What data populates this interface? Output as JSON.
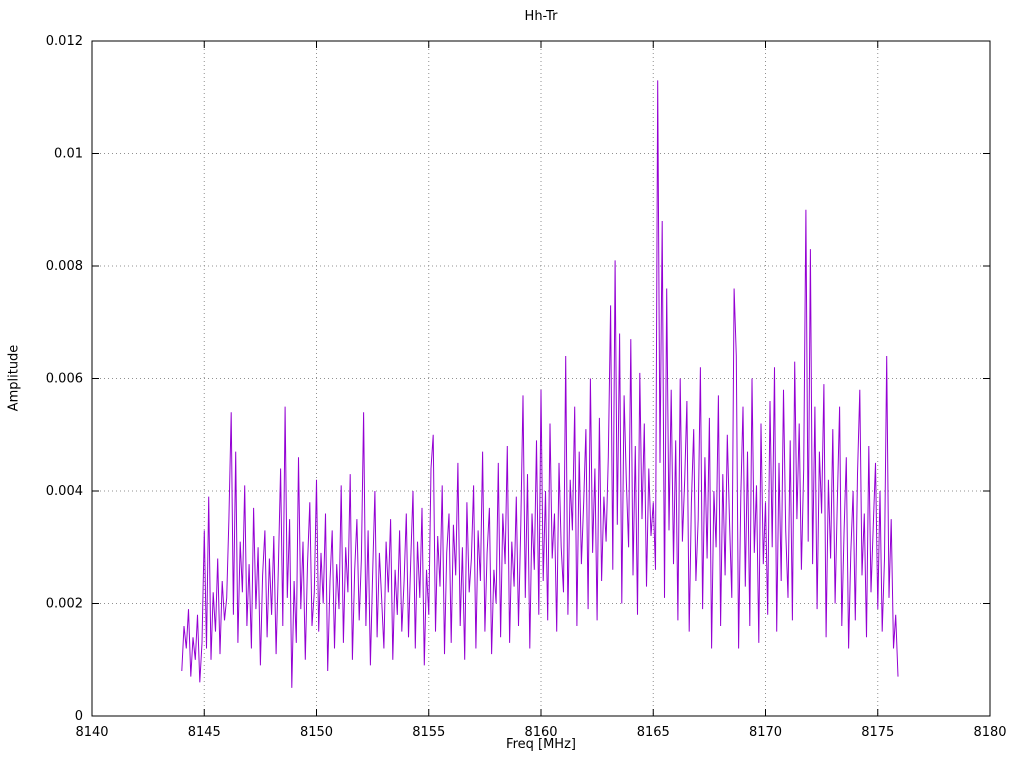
{
  "chart_data": {
    "type": "line",
    "title": "Hh-Tr",
    "xlabel": "Freq [MHz]",
    "ylabel": "Amplitude",
    "xlim": [
      8140,
      8180
    ],
    "ylim": [
      0,
      0.012
    ],
    "x_tick_values": [
      8140,
      8145,
      8150,
      8155,
      8160,
      8165,
      8170,
      8175,
      8180
    ],
    "x_tick_labels": [
      "8140",
      "8145",
      "8150",
      "8155",
      "8160",
      "8165",
      "8170",
      "8175",
      "8180"
    ],
    "y_tick_values": [
      0,
      0.002,
      0.004,
      0.006,
      0.008,
      0.01,
      0.012
    ],
    "y_tick_labels": [
      "0",
      "0.002",
      "0.004",
      "0.006",
      "0.008",
      "0.01",
      "0.012"
    ],
    "grid": "dotted",
    "legend": "none",
    "line_color": "#9400d3",
    "grid_color": "#909090",
    "border_color": "#000000",
    "x_start": 8144.0,
    "x_step": 0.1,
    "values": [
      0.0008,
      0.0016,
      0.0012,
      0.0019,
      0.0007,
      0.0014,
      0.001,
      0.0018,
      0.0006,
      0.0013,
      0.0033,
      0.0012,
      0.0039,
      0.001,
      0.0022,
      0.0015,
      0.0028,
      0.0011,
      0.0024,
      0.0017,
      0.0021,
      0.0035,
      0.0054,
      0.0018,
      0.0047,
      0.0013,
      0.0031,
      0.0022,
      0.0041,
      0.0016,
      0.0027,
      0.0012,
      0.0037,
      0.0019,
      0.003,
      0.0009,
      0.0025,
      0.0033,
      0.0014,
      0.0028,
      0.0018,
      0.0032,
      0.0011,
      0.0026,
      0.0044,
      0.0016,
      0.0055,
      0.0021,
      0.0035,
      0.0005,
      0.0024,
      0.0013,
      0.0046,
      0.0019,
      0.0031,
      0.001,
      0.0027,
      0.0038,
      0.0016,
      0.0022,
      0.0042,
      0.0015,
      0.0029,
      0.002,
      0.0036,
      0.0008,
      0.0024,
      0.0033,
      0.0012,
      0.0027,
      0.0019,
      0.0041,
      0.0013,
      0.003,
      0.0022,
      0.0043,
      0.001,
      0.0026,
      0.0035,
      0.0017,
      0.0028,
      0.0054,
      0.0016,
      0.0033,
      0.0009,
      0.0025,
      0.004,
      0.0014,
      0.0029,
      0.0021,
      0.0012,
      0.0031,
      0.0022,
      0.0035,
      0.001,
      0.0026,
      0.0018,
      0.0033,
      0.0015,
      0.0024,
      0.0036,
      0.0014,
      0.0028,
      0.004,
      0.0012,
      0.0031,
      0.0021,
      0.0037,
      0.0009,
      0.0026,
      0.0018,
      0.0044,
      0.005,
      0.0015,
      0.0032,
      0.0023,
      0.0041,
      0.0011,
      0.0029,
      0.0036,
      0.0013,
      0.0034,
      0.0025,
      0.0045,
      0.0016,
      0.003,
      0.001,
      0.0038,
      0.0022,
      0.0028,
      0.0041,
      0.0012,
      0.0033,
      0.0024,
      0.0047,
      0.0015,
      0.0029,
      0.0037,
      0.0011,
      0.0026,
      0.002,
      0.0045,
      0.0014,
      0.0036,
      0.0027,
      0.0048,
      0.0013,
      0.0031,
      0.0023,
      0.0039,
      0.0016,
      0.0034,
      0.0057,
      0.0021,
      0.0043,
      0.0012,
      0.0036,
      0.0026,
      0.0049,
      0.0018,
      0.0058,
      0.0024,
      0.004,
      0.0017,
      0.0052,
      0.0028,
      0.0036,
      0.0015,
      0.0045,
      0.003,
      0.0022,
      0.0064,
      0.0018,
      0.0042,
      0.0033,
      0.0055,
      0.0016,
      0.0047,
      0.0027,
      0.0038,
      0.0051,
      0.0019,
      0.006,
      0.0029,
      0.0044,
      0.0017,
      0.0053,
      0.0024,
      0.0039,
      0.0031,
      0.0046,
      0.0073,
      0.0026,
      0.0081,
      0.0034,
      0.0068,
      0.002,
      0.0057,
      0.0042,
      0.003,
      0.0067,
      0.0025,
      0.0048,
      0.0018,
      0.0061,
      0.0035,
      0.0052,
      0.0023,
      0.0044,
      0.0032,
      0.0038,
      0.0026,
      0.0113,
      0.0045,
      0.0088,
      0.0021,
      0.0076,
      0.0033,
      0.0058,
      0.0027,
      0.0049,
      0.0017,
      0.006,
      0.0031,
      0.0042,
      0.0056,
      0.0015,
      0.0038,
      0.0051,
      0.0024,
      0.0035,
      0.0062,
      0.0019,
      0.0046,
      0.0028,
      0.0053,
      0.0012,
      0.004,
      0.003,
      0.0057,
      0.0016,
      0.0043,
      0.0025,
      0.005,
      0.0034,
      0.0021,
      0.0076,
      0.0064,
      0.0012,
      0.0039,
      0.0055,
      0.0023,
      0.0047,
      0.0016,
      0.006,
      0.0029,
      0.0041,
      0.0013,
      0.0052,
      0.0027,
      0.0038,
      0.0018,
      0.0056,
      0.003,
      0.0062,
      0.0015,
      0.0045,
      0.0024,
      0.0058,
      0.0033,
      0.0021,
      0.0049,
      0.0017,
      0.0063,
      0.0035,
      0.0052,
      0.0026,
      0.0044,
      0.009,
      0.0031,
      0.0083,
      0.0027,
      0.0055,
      0.0019,
      0.0047,
      0.0036,
      0.0059,
      0.0014,
      0.0042,
      0.0028,
      0.0051,
      0.002,
      0.0038,
      0.0055,
      0.0016,
      0.0033,
      0.0046,
      0.0012,
      0.0029,
      0.004,
      0.0017,
      0.0043,
      0.0058,
      0.0025,
      0.0036,
      0.0014,
      0.0048,
      0.0022,
      0.0034,
      0.0045,
      0.0019,
      0.004,
      0.0015,
      0.0028,
      0.0064,
      0.0021,
      0.0035,
      0.0012,
      0.0018,
      0.0007
    ]
  }
}
